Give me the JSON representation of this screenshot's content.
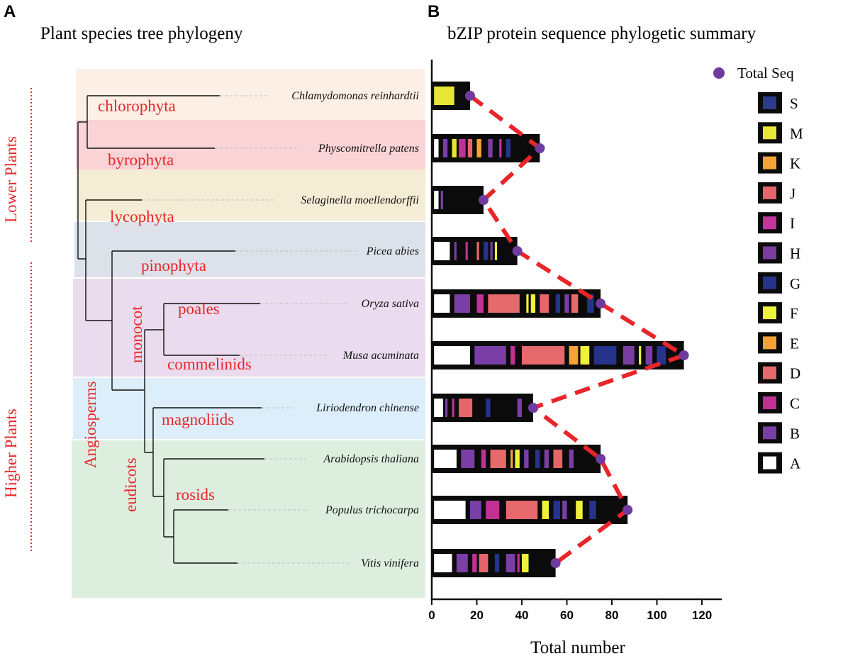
{
  "panel_a": {
    "letter": "A",
    "title": "Plant species tree phylogeny",
    "bands": [
      {
        "color": "#fcefe6"
      },
      {
        "color": "#f9d3d6"
      },
      {
        "color": "#f4ecd4"
      },
      {
        "color": "#dde2ea"
      },
      {
        "color": "#eadcee"
      },
      {
        "color": "#dbeef9"
      },
      {
        "color": "#ddeedf"
      }
    ],
    "clades": {
      "chlorophyta": "chlorophyta",
      "byrophyta": "byrophyta",
      "lycophyta": "lycophyta",
      "pinophyta": "pinophyta",
      "poales": "poales",
      "commelinids": "commelinids",
      "magnoliids": "magnoliids",
      "rosids": "rosids",
      "monocot": "monocot",
      "angiosperms": "Angiosperms",
      "eudicots": "eudicots"
    },
    "groups": {
      "lower": "Lower Plants",
      "higher": "Higher Plants"
    },
    "label_color": "#e8262a"
  },
  "panel_b": {
    "letter": "B",
    "title": "bZIP protein sequence phylogetic summary"
  },
  "chart_data": {
    "type": "bar",
    "orientation": "horizontal",
    "title": "bZIP protein sequence phylogetic summary",
    "xlabel": "Total number",
    "xlim": [
      0,
      130
    ],
    "xticks": [
      0,
      20,
      40,
      60,
      80,
      100,
      120
    ],
    "categories": [
      "Chlamydomonas reinhardtii",
      "Physcomitrella patens",
      "Selaginella moellendorffii",
      "Picea abies",
      "Oryza sativa",
      "Musa acuminata",
      "Liriodendron chinense",
      "Arabidopsis thaliana",
      "Populus trichocarpa",
      "Vitis vinifera"
    ],
    "total_seq": [
      17,
      48,
      23,
      38,
      75,
      112,
      45,
      75,
      87,
      55
    ],
    "segments": [
      [
        [
          "M",
          1,
          10
        ]
      ],
      [
        [
          "A",
          1,
          3
        ],
        [
          "B",
          5,
          7
        ],
        [
          "M",
          9,
          11
        ],
        [
          "C",
          12,
          15
        ],
        [
          "J",
          16,
          18
        ],
        [
          "E",
          20,
          22
        ],
        [
          "H",
          25,
          27
        ],
        [
          "I",
          30,
          31
        ],
        [
          "G",
          33,
          35
        ]
      ],
      [
        [
          "A",
          1,
          3
        ],
        [
          "B",
          4,
          5
        ]
      ],
      [
        [
          "A",
          1,
          8
        ],
        [
          "B",
          10,
          11
        ],
        [
          "C",
          15,
          16
        ],
        [
          "D",
          20,
          21
        ],
        [
          "G",
          23,
          25
        ],
        [
          "B",
          26,
          27
        ],
        [
          "F",
          28,
          29
        ]
      ],
      [
        [
          "A",
          1,
          8
        ],
        [
          "B",
          10,
          17
        ],
        [
          "C",
          20,
          23
        ],
        [
          "D",
          25,
          39
        ],
        [
          "F",
          42,
          43
        ],
        [
          "F",
          44,
          46
        ],
        [
          "J",
          48,
          52
        ],
        [
          "G",
          55,
          57
        ],
        [
          "H",
          59,
          61
        ],
        [
          "D",
          62,
          65
        ],
        [
          "G",
          69,
          72
        ]
      ],
      [
        [
          "A",
          1,
          17
        ],
        [
          "B",
          19,
          33
        ],
        [
          "C",
          35,
          37
        ],
        [
          "D",
          40,
          59
        ],
        [
          "E",
          61,
          65
        ],
        [
          "F",
          66,
          70
        ],
        [
          "G",
          72,
          82
        ],
        [
          "H",
          85,
          90
        ],
        [
          "F",
          92,
          93
        ],
        [
          "H",
          95,
          98
        ],
        [
          "G",
          100,
          104
        ]
      ],
      [
        [
          "A",
          1,
          5
        ],
        [
          "B",
          6,
          7
        ],
        [
          "C",
          9,
          10
        ],
        [
          "J",
          12,
          18
        ],
        [
          "G",
          24,
          26
        ],
        [
          "B",
          38,
          40
        ]
      ],
      [
        [
          "A",
          1,
          11
        ],
        [
          "B",
          13,
          19
        ],
        [
          "C",
          22,
          24
        ],
        [
          "D",
          26,
          33
        ],
        [
          "E",
          35,
          36
        ],
        [
          "F",
          37,
          39
        ],
        [
          "B",
          41,
          43
        ],
        [
          "G",
          46,
          48
        ],
        [
          "H",
          50,
          52
        ],
        [
          "J",
          54,
          58
        ],
        [
          "B",
          61,
          63
        ]
      ],
      [
        [
          "A",
          1,
          15
        ],
        [
          "B",
          17,
          22
        ],
        [
          "C",
          24,
          30
        ],
        [
          "D",
          33,
          47
        ],
        [
          "F",
          49,
          52
        ],
        [
          "G",
          54,
          57
        ],
        [
          "B",
          58,
          60
        ],
        [
          "F",
          64,
          67
        ],
        [
          "G",
          70,
          73
        ]
      ],
      [
        [
          "A",
          1,
          9
        ],
        [
          "B",
          11,
          16
        ],
        [
          "C",
          18,
          20
        ],
        [
          "J",
          21,
          25
        ],
        [
          "G",
          28,
          30
        ],
        [
          "B",
          33,
          37
        ],
        [
          "C",
          38,
          39
        ],
        [
          "F",
          40,
          43
        ]
      ]
    ],
    "legend": {
      "total_seq": "Total Seq",
      "classes": [
        {
          "name": "S",
          "color": "#2b3b8f"
        },
        {
          "name": "M",
          "color": "#e8e634"
        },
        {
          "name": "K",
          "color": "#f4a434"
        },
        {
          "name": "J",
          "color": "#e5656b"
        },
        {
          "name": "I",
          "color": "#c2359e"
        },
        {
          "name": "H",
          "color": "#7a3ea3"
        },
        {
          "name": "G",
          "color": "#25338a"
        },
        {
          "name": "F",
          "color": "#eef23b"
        },
        {
          "name": "E",
          "color": "#f5a336"
        },
        {
          "name": "D",
          "color": "#e6696b"
        },
        {
          "name": "C",
          "color": "#c23096"
        },
        {
          "name": "B",
          "color": "#7a3fa6"
        },
        {
          "name": "A",
          "color": "#ffffff"
        }
      ]
    },
    "total_marker_color": "#6f3b9e",
    "trend_line_color": "#e8262a"
  }
}
